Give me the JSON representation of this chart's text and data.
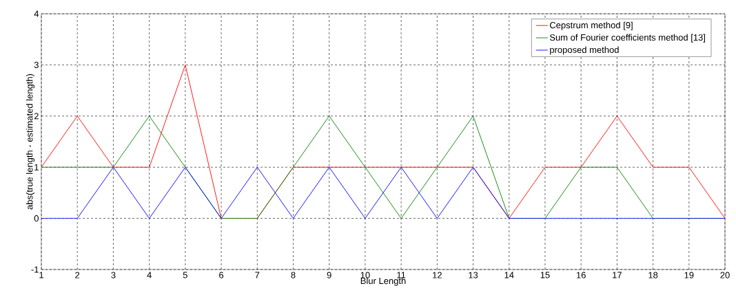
{
  "chart_data": {
    "type": "line",
    "xlabel": "Blur Length",
    "ylabel": "abs(true length - estimated length)",
    "x": [
      1,
      2,
      3,
      4,
      5,
      6,
      7,
      8,
      9,
      10,
      11,
      12,
      13,
      14,
      15,
      16,
      17,
      18,
      19,
      20
    ],
    "series": [
      {
        "name": "Cepstrum method [9]",
        "color": "#ff0000",
        "values": [
          1,
          2,
          1,
          1,
          3,
          0,
          0,
          1,
          1,
          1,
          1,
          1,
          1,
          0,
          1,
          1,
          2,
          1,
          1,
          0
        ]
      },
      {
        "name": "Sum of Fourier coefficients method [13]",
        "color": "#008000",
        "values": [
          1,
          1,
          1,
          2,
          1,
          0,
          0,
          1,
          2,
          1,
          0,
          1,
          2,
          0,
          0,
          1,
          1,
          0,
          0,
          0
        ]
      },
      {
        "name": "proposed method",
        "color": "#0000ff",
        "values": [
          0,
          0,
          1,
          0,
          1,
          0,
          1,
          0,
          1,
          0,
          1,
          0,
          1,
          0,
          0,
          0,
          0,
          0,
          0,
          0
        ]
      }
    ],
    "xlim": [
      1,
      20
    ],
    "ylim": [
      -1,
      4
    ],
    "xticks": [
      1,
      2,
      3,
      4,
      5,
      6,
      7,
      8,
      9,
      10,
      11,
      12,
      13,
      14,
      15,
      16,
      17,
      18,
      19,
      20
    ],
    "yticks": [
      -1,
      0,
      1,
      2,
      3,
      4
    ],
    "grid": true,
    "legend": "top right",
    "marker": "none",
    "line_style": "solid"
  }
}
